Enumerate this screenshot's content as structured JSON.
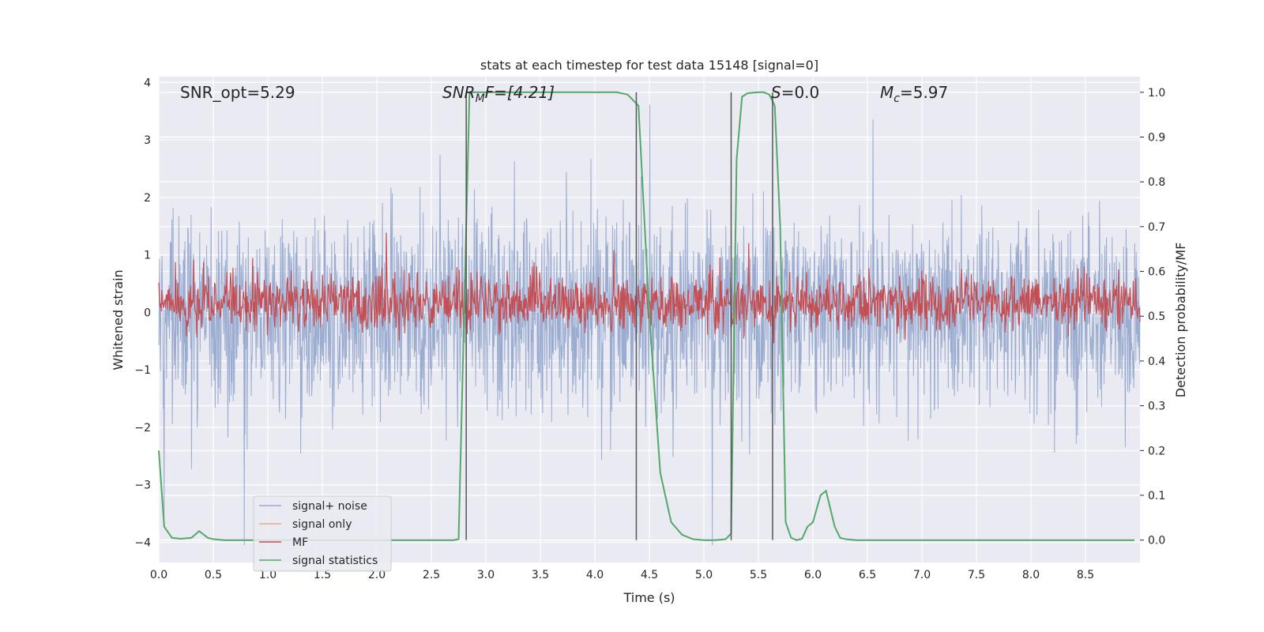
{
  "chart_data": {
    "type": "line",
    "title": "stats at each timestep for test data 15148 [signal=0]",
    "xlabel": "Time (s)",
    "ylabel": "Whitened strain",
    "y2label": "Detection probability/MF",
    "xlim": [
      0,
      9
    ],
    "ylim": [
      -4.35,
      4.1
    ],
    "y2lim": [
      -0.05,
      1.035
    ],
    "x_ticks": [
      "0.0",
      "0.5",
      "1.0",
      "1.5",
      "2.0",
      "2.5",
      "3.0",
      "3.5",
      "4.0",
      "4.5",
      "5.0",
      "5.5",
      "6.0",
      "6.5",
      "7.0",
      "7.5",
      "8.0",
      "8.5"
    ],
    "y_ticks": [
      "4",
      "3",
      "2",
      "1",
      "0",
      "−1",
      "−2",
      "−3",
      "−4"
    ],
    "y2_ticks": [
      "1.0",
      "0.9",
      "0.8",
      "0.7",
      "0.6",
      "0.5",
      "0.4",
      "0.3",
      "0.2",
      "0.1",
      "0.0"
    ],
    "grid": true,
    "legend_position": "lower-left",
    "annotations": {
      "snr_opt": "SNR_opt=5.29",
      "snr_mf_italic": "SNR",
      "snr_mf_sub": "M",
      "snr_mf_rest": "F=[4.21]",
      "s_italic": "S",
      "s_rest": "=0.0",
      "mc_italic": "M",
      "mc_sub": "c",
      "mc_rest": "=5.97"
    },
    "series": [
      {
        "name": "signal+ noise",
        "color": "#97a9cf",
        "axis": "left",
        "description_amplitude": 1.9
      },
      {
        "name": "signal only",
        "color": "#e8a98a",
        "axis": "left"
      },
      {
        "name": "MF",
        "color": "#c44e52",
        "axis": "right",
        "mean": 0.53,
        "amplitude": 0.08
      },
      {
        "name": "signal statistics",
        "color": "#55a868",
        "axis": "right",
        "x": [
          0.0,
          0.05,
          0.12,
          0.2,
          0.3,
          0.37,
          0.45,
          0.5,
          0.6,
          1.0,
          1.5,
          2.0,
          2.5,
          2.7,
          2.75,
          2.8,
          2.85,
          2.9,
          3.0,
          3.5,
          4.0,
          4.2,
          4.3,
          4.4,
          4.5,
          4.6,
          4.7,
          4.8,
          4.9,
          5.0,
          5.1,
          5.2,
          5.25,
          5.3,
          5.35,
          5.4,
          5.5,
          5.55,
          5.6,
          5.65,
          5.7,
          5.75,
          5.8,
          5.85,
          5.9,
          5.95,
          6.0,
          6.07,
          6.12,
          6.2,
          6.25,
          6.3,
          6.4,
          6.5,
          7.0,
          8.0,
          8.95
        ],
        "y": [
          0.2,
          0.03,
          0.005,
          0.003,
          0.005,
          0.02,
          0.005,
          0.002,
          0.0,
          0.0,
          0.0,
          0.0,
          0.0,
          0.0,
          0.002,
          0.5,
          1.0,
          1.0,
          1.0,
          1.0,
          1.0,
          1.0,
          0.995,
          0.97,
          0.5,
          0.15,
          0.04,
          0.012,
          0.002,
          0.0,
          0.0,
          0.002,
          0.015,
          0.85,
          0.99,
          0.998,
          1.0,
          1.0,
          0.995,
          0.97,
          0.7,
          0.04,
          0.005,
          0.0,
          0.003,
          0.03,
          0.04,
          0.1,
          0.11,
          0.03,
          0.005,
          0.002,
          0.0,
          0.0,
          0.0,
          0.0,
          0.0
        ]
      }
    ],
    "vertical_lines_x": [
      2.82,
      4.38,
      5.25,
      5.63
    ]
  }
}
